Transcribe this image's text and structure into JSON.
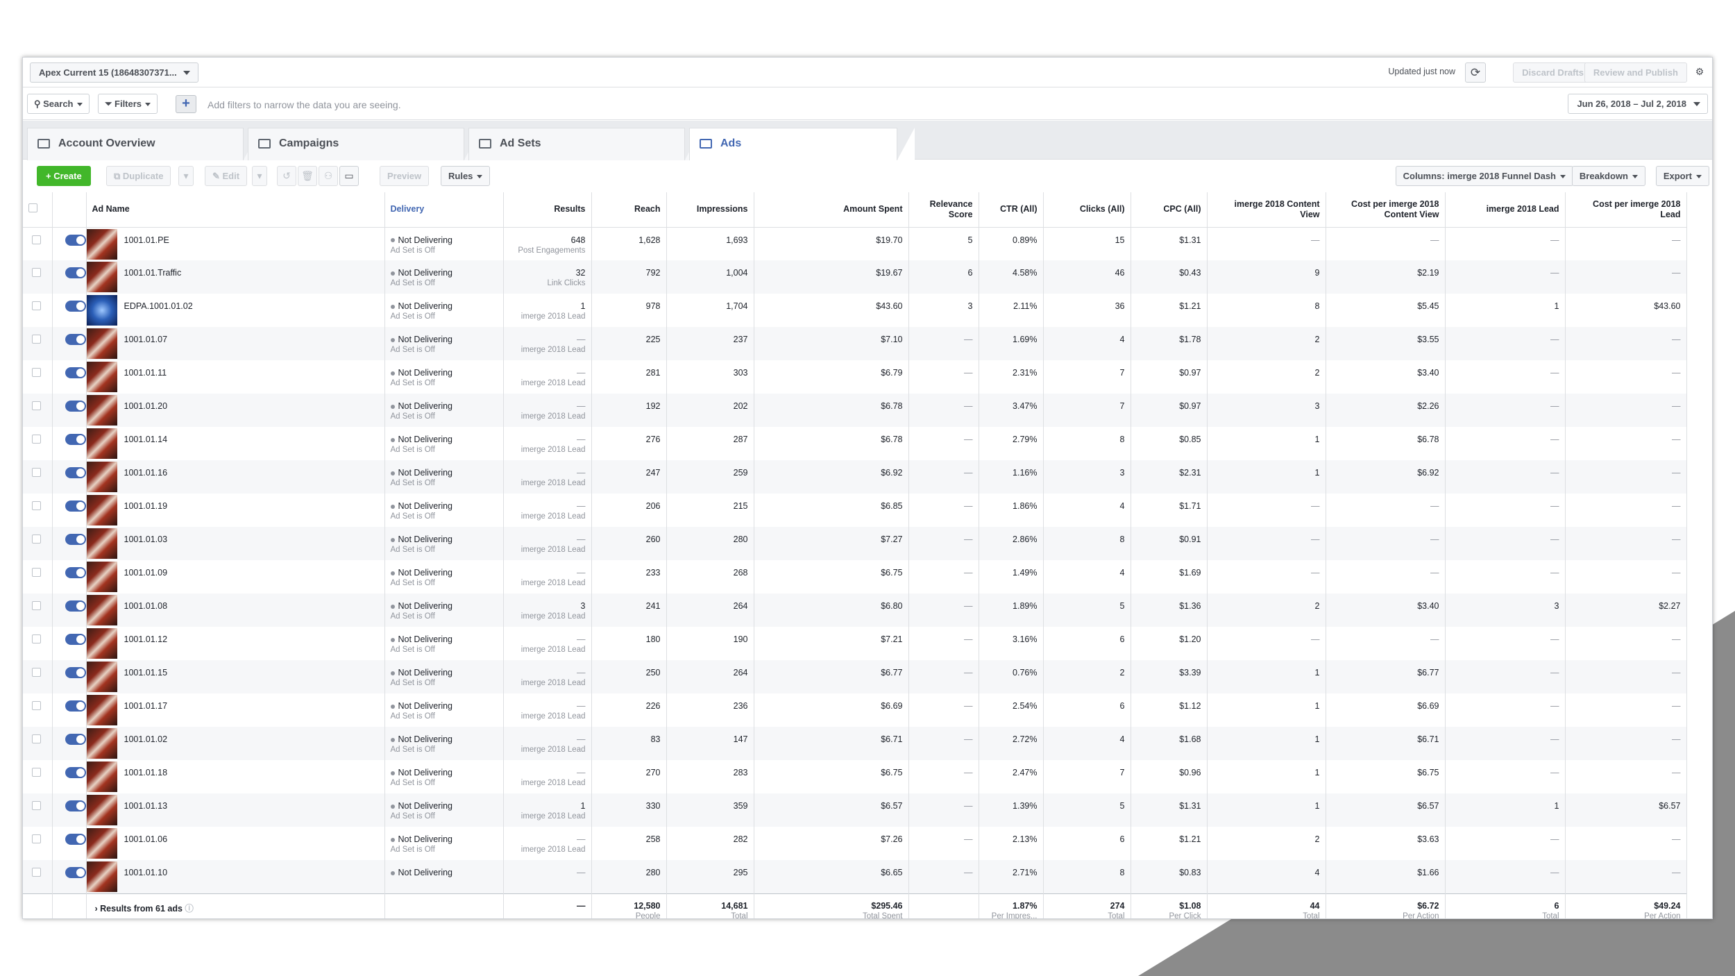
{
  "account": {
    "label": "Apex Current 15 (18648307371..."
  },
  "status": {
    "updated": "Updated just now"
  },
  "actions": {
    "discard": "Discard Drafts",
    "review": "Review and Publish"
  },
  "filters": {
    "search": "Search",
    "filters": "Filters",
    "hint": "Add filters to narrow the data you are seeing.",
    "date_range": "Jun 26, 2018 – Jul 2, 2018"
  },
  "tabs": [
    {
      "label": "Account Overview",
      "icon": "account-overview-icon"
    },
    {
      "label": "Campaigns",
      "icon": "campaigns-icon"
    },
    {
      "label": "Ad Sets",
      "icon": "ad-sets-icon"
    },
    {
      "label": "Ads",
      "icon": "ads-icon"
    }
  ],
  "toolbar": {
    "create": "Create",
    "duplicate": "Duplicate",
    "edit": "Edit",
    "preview": "Preview",
    "rules": "Rules",
    "columns": "Columns: imerge 2018 Funnel Dash",
    "breakdown": "Breakdown",
    "export": "Export"
  },
  "columns": [
    "Ad Name",
    "Delivery",
    "Results",
    "Reach",
    "Impressions",
    "Amount Spent",
    "Relevance Score",
    "CTR (All)",
    "Clicks (All)",
    "CPC (All)",
    "imerge 2018 Content View",
    "Cost per imerge 2018 Content View",
    "imerge 2018 Lead",
    "Cost per imerge 2018 Lead"
  ],
  "rows": [
    {
      "name": "1001.01.PE",
      "delivery": "Not Delivering",
      "delivery_sub": "Ad Set is Off",
      "results": "648",
      "results_sub": "Post Engagements",
      "reach": "1,628",
      "impressions": "1,693",
      "spent": "$19.70",
      "relevance": "5",
      "ctr": "0.89%",
      "clicks": "15",
      "cpc": "$1.31",
      "cv": "—",
      "cost_cv": "—",
      "lead": "—",
      "cost_lead": "—"
    },
    {
      "name": "1001.01.Traffic",
      "delivery": "Not Delivering",
      "delivery_sub": "Ad Set is Off",
      "results": "32",
      "results_sub": "Link Clicks",
      "reach": "792",
      "impressions": "1,004",
      "spent": "$19.67",
      "relevance": "6",
      "ctr": "4.58%",
      "clicks": "46",
      "cpc": "$0.43",
      "cv": "9",
      "cost_cv": "$2.19",
      "lead": "—",
      "cost_lead": "—"
    },
    {
      "name": "EDPA.1001.01.02",
      "delivery": "Not Delivering",
      "delivery_sub": "Ad Set is Off",
      "results": "1",
      "results_sub": "imerge 2018 Lead",
      "reach": "978",
      "impressions": "1,704",
      "spent": "$43.60",
      "relevance": "3",
      "ctr": "2.11%",
      "clicks": "36",
      "cpc": "$1.21",
      "cv": "8",
      "cost_cv": "$5.45",
      "lead": "1",
      "cost_lead": "$43.60",
      "thumb": "blue"
    },
    {
      "name": "1001.01.07",
      "delivery": "Not Delivering",
      "delivery_sub": "Ad Set is Off",
      "results": "—",
      "results_sub": "imerge 2018 Lead",
      "reach": "225",
      "impressions": "237",
      "spent": "$7.10",
      "relevance": "—",
      "ctr": "1.69%",
      "clicks": "4",
      "cpc": "$1.78",
      "cv": "2",
      "cost_cv": "$3.55",
      "lead": "—",
      "cost_lead": "—"
    },
    {
      "name": "1001.01.11",
      "delivery": "Not Delivering",
      "delivery_sub": "Ad Set is Off",
      "results": "—",
      "results_sub": "imerge 2018 Lead",
      "reach": "281",
      "impressions": "303",
      "spent": "$6.79",
      "relevance": "—",
      "ctr": "2.31%",
      "clicks": "7",
      "cpc": "$0.97",
      "cv": "2",
      "cost_cv": "$3.40",
      "lead": "—",
      "cost_lead": "—"
    },
    {
      "name": "1001.01.20",
      "delivery": "Not Delivering",
      "delivery_sub": "Ad Set is Off",
      "results": "—",
      "results_sub": "imerge 2018 Lead",
      "reach": "192",
      "impressions": "202",
      "spent": "$6.78",
      "relevance": "—",
      "ctr": "3.47%",
      "clicks": "7",
      "cpc": "$0.97",
      "cv": "3",
      "cost_cv": "$2.26",
      "lead": "—",
      "cost_lead": "—"
    },
    {
      "name": "1001.01.14",
      "delivery": "Not Delivering",
      "delivery_sub": "Ad Set is Off",
      "results": "—",
      "results_sub": "imerge 2018 Lead",
      "reach": "276",
      "impressions": "287",
      "spent": "$6.78",
      "relevance": "—",
      "ctr": "2.79%",
      "clicks": "8",
      "cpc": "$0.85",
      "cv": "1",
      "cost_cv": "$6.78",
      "lead": "—",
      "cost_lead": "—"
    },
    {
      "name": "1001.01.16",
      "delivery": "Not Delivering",
      "delivery_sub": "Ad Set is Off",
      "results": "—",
      "results_sub": "imerge 2018 Lead",
      "reach": "247",
      "impressions": "259",
      "spent": "$6.92",
      "relevance": "—",
      "ctr": "1.16%",
      "clicks": "3",
      "cpc": "$2.31",
      "cv": "1",
      "cost_cv": "$6.92",
      "lead": "—",
      "cost_lead": "—"
    },
    {
      "name": "1001.01.19",
      "delivery": "Not Delivering",
      "delivery_sub": "Ad Set is Off",
      "results": "—",
      "results_sub": "imerge 2018 Lead",
      "reach": "206",
      "impressions": "215",
      "spent": "$6.85",
      "relevance": "—",
      "ctr": "1.86%",
      "clicks": "4",
      "cpc": "$1.71",
      "cv": "—",
      "cost_cv": "—",
      "lead": "—",
      "cost_lead": "—"
    },
    {
      "name": "1001.01.03",
      "delivery": "Not Delivering",
      "delivery_sub": "Ad Set is Off",
      "results": "—",
      "results_sub": "imerge 2018 Lead",
      "reach": "260",
      "impressions": "280",
      "spent": "$7.27",
      "relevance": "—",
      "ctr": "2.86%",
      "clicks": "8",
      "cpc": "$0.91",
      "cv": "—",
      "cost_cv": "—",
      "lead": "—",
      "cost_lead": "—"
    },
    {
      "name": "1001.01.09",
      "delivery": "Not Delivering",
      "delivery_sub": "Ad Set is Off",
      "results": "—",
      "results_sub": "imerge 2018 Lead",
      "reach": "233",
      "impressions": "268",
      "spent": "$6.75",
      "relevance": "—",
      "ctr": "1.49%",
      "clicks": "4",
      "cpc": "$1.69",
      "cv": "—",
      "cost_cv": "—",
      "lead": "—",
      "cost_lead": "—"
    },
    {
      "name": "1001.01.08",
      "delivery": "Not Delivering",
      "delivery_sub": "Ad Set is Off",
      "results": "3",
      "results_sub": "imerge 2018 Lead",
      "reach": "241",
      "impressions": "264",
      "spent": "$6.80",
      "relevance": "—",
      "ctr": "1.89%",
      "clicks": "5",
      "cpc": "$1.36",
      "cv": "2",
      "cost_cv": "$3.40",
      "lead": "3",
      "cost_lead": "$2.27"
    },
    {
      "name": "1001.01.12",
      "delivery": "Not Delivering",
      "delivery_sub": "Ad Set is Off",
      "results": "—",
      "results_sub": "imerge 2018 Lead",
      "reach": "180",
      "impressions": "190",
      "spent": "$7.21",
      "relevance": "—",
      "ctr": "3.16%",
      "clicks": "6",
      "cpc": "$1.20",
      "cv": "—",
      "cost_cv": "—",
      "lead": "—",
      "cost_lead": "—"
    },
    {
      "name": "1001.01.15",
      "delivery": "Not Delivering",
      "delivery_sub": "Ad Set is Off",
      "results": "—",
      "results_sub": "imerge 2018 Lead",
      "reach": "250",
      "impressions": "264",
      "spent": "$6.77",
      "relevance": "—",
      "ctr": "0.76%",
      "clicks": "2",
      "cpc": "$3.39",
      "cv": "1",
      "cost_cv": "$6.77",
      "lead": "—",
      "cost_lead": "—"
    },
    {
      "name": "1001.01.17",
      "delivery": "Not Delivering",
      "delivery_sub": "Ad Set is Off",
      "results": "—",
      "results_sub": "imerge 2018 Lead",
      "reach": "226",
      "impressions": "236",
      "spent": "$6.69",
      "relevance": "—",
      "ctr": "2.54%",
      "clicks": "6",
      "cpc": "$1.12",
      "cv": "1",
      "cost_cv": "$6.69",
      "lead": "—",
      "cost_lead": "—"
    },
    {
      "name": "1001.01.02",
      "delivery": "Not Delivering",
      "delivery_sub": "Ad Set is Off",
      "results": "—",
      "results_sub": "imerge 2018 Lead",
      "reach": "83",
      "impressions": "147",
      "spent": "$6.71",
      "relevance": "—",
      "ctr": "2.72%",
      "clicks": "4",
      "cpc": "$1.68",
      "cv": "1",
      "cost_cv": "$6.71",
      "lead": "—",
      "cost_lead": "—"
    },
    {
      "name": "1001.01.18",
      "delivery": "Not Delivering",
      "delivery_sub": "Ad Set is Off",
      "results": "—",
      "results_sub": "imerge 2018 Lead",
      "reach": "270",
      "impressions": "283",
      "spent": "$6.75",
      "relevance": "—",
      "ctr": "2.47%",
      "clicks": "7",
      "cpc": "$0.96",
      "cv": "1",
      "cost_cv": "$6.75",
      "lead": "—",
      "cost_lead": "—"
    },
    {
      "name": "1001.01.13",
      "delivery": "Not Delivering",
      "delivery_sub": "Ad Set is Off",
      "results": "1",
      "results_sub": "imerge 2018 Lead",
      "reach": "330",
      "impressions": "359",
      "spent": "$6.57",
      "relevance": "—",
      "ctr": "1.39%",
      "clicks": "5",
      "cpc": "$1.31",
      "cv": "1",
      "cost_cv": "$6.57",
      "lead": "1",
      "cost_lead": "$6.57"
    },
    {
      "name": "1001.01.06",
      "delivery": "Not Delivering",
      "delivery_sub": "Ad Set is Off",
      "results": "—",
      "results_sub": "imerge 2018 Lead",
      "reach": "258",
      "impressions": "282",
      "spent": "$7.26",
      "relevance": "—",
      "ctr": "2.13%",
      "clicks": "6",
      "cpc": "$1.21",
      "cv": "2",
      "cost_cv": "$3.63",
      "lead": "—",
      "cost_lead": "—"
    },
    {
      "name": "1001.01.10",
      "delivery": "Not Delivering",
      "delivery_sub": "",
      "results": "—",
      "results_sub": "",
      "reach": "280",
      "impressions": "295",
      "spent": "$6.65",
      "relevance": "—",
      "ctr": "2.71%",
      "clicks": "8",
      "cpc": "$0.83",
      "cv": "4",
      "cost_cv": "$1.66",
      "lead": "—",
      "cost_lead": "—"
    }
  ],
  "totals": {
    "label": "Results from 61 ads",
    "results": "—",
    "reach": "12,580",
    "reach_sub": "People",
    "impressions": "14,681",
    "impressions_sub": "Total",
    "spent": "$295.46",
    "spent_sub": "Total Spent",
    "ctr": "1.87%",
    "ctr_sub": "Per Impres...",
    "clicks": "274",
    "clicks_sub": "Total",
    "cpc": "$1.08",
    "cpc_sub": "Per Click",
    "cv": "44",
    "cv_sub": "Total",
    "cost_cv": "$6.72",
    "cost_cv_sub": "Per Action",
    "lead": "6",
    "lead_sub": "Total",
    "cost_lead": "$49.24",
    "cost_lead_sub": "Per Action"
  }
}
